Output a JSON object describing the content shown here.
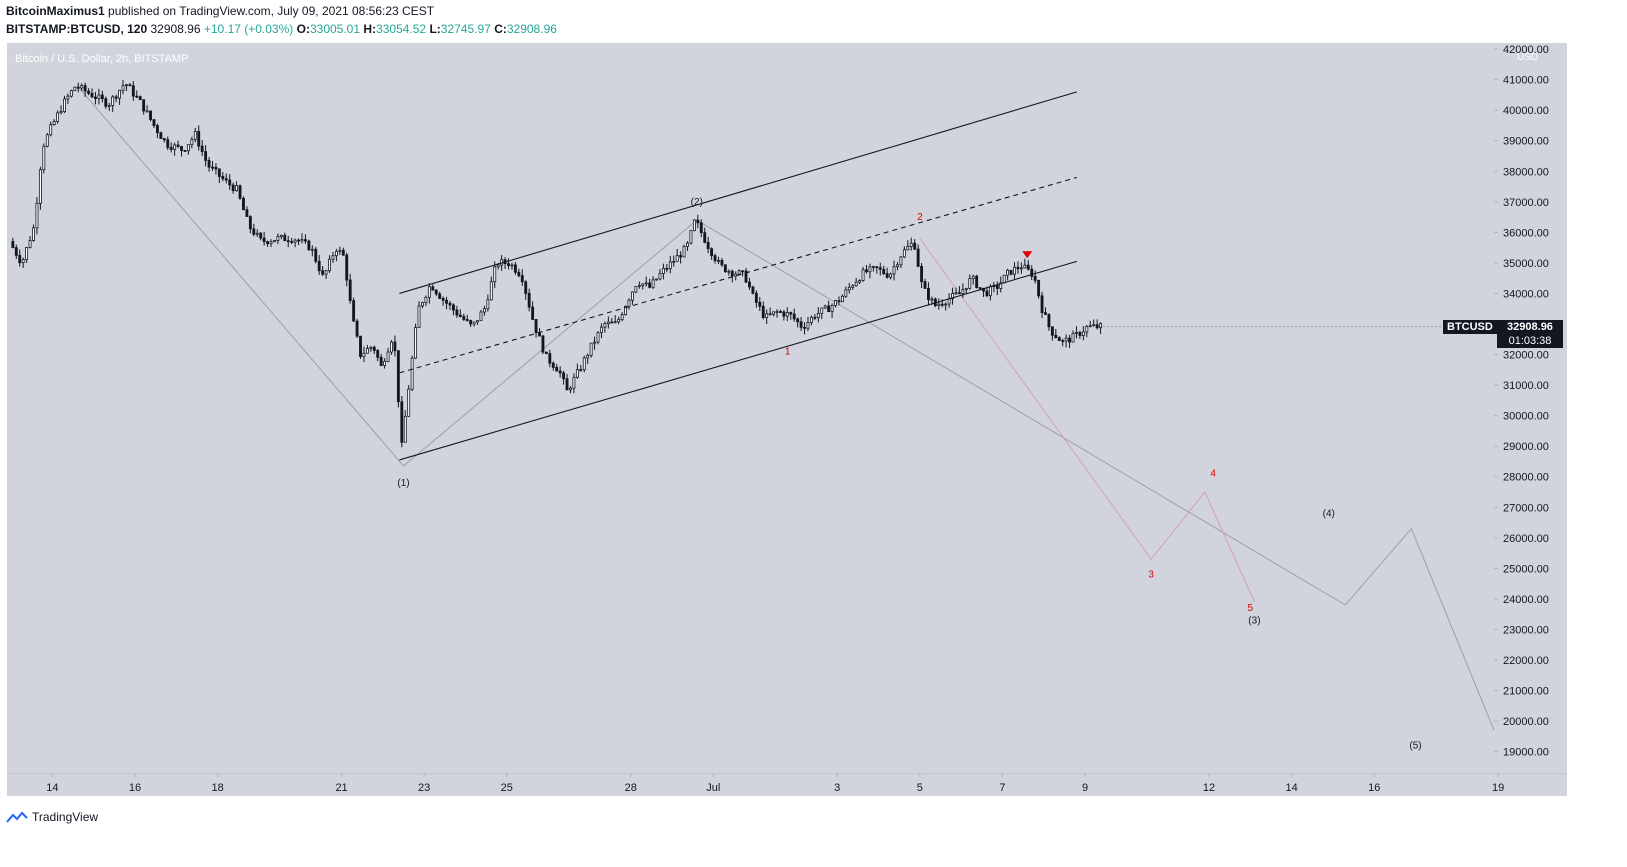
{
  "header": {
    "author": "BitcoinMaximus1",
    "published_text": " published on TradingView.com, July 09, 2021 08:56:23 CEST",
    "symbol": "BITSTAMP:BTCUSD, 120",
    "last": "32908.96",
    "change": "+10.17 (+0.03%)",
    "o_label": "O:",
    "o_value": "33005.01",
    "h_label": "H:",
    "h_value": "33054.52",
    "l_label": "L:",
    "l_value": "32745.97",
    "c_label": "C:",
    "c_value": "32908.96"
  },
  "chart_title": "Bitcoin / U.S. Dollar, 2h, BITSTAMP",
  "price_tag": {
    "symbol": "BTCUSD",
    "price": "32908.96",
    "countdown": "01:03:38"
  },
  "footer": {
    "brand": "TradingView"
  },
  "colors": {
    "bg": "#d1d4dc",
    "candle": "#131722",
    "red": "#e00000",
    "grey_line": "#9e9ea6",
    "pink_line": "#d8a0ac"
  },
  "chart_data": {
    "type": "candlestick",
    "title": "Bitcoin / U.S. Dollar, 2h, BITSTAMP",
    "currency": "USD",
    "y_ticks": [
      19000,
      20000,
      21000,
      22000,
      23000,
      24000,
      25000,
      26000,
      27000,
      28000,
      29000,
      30000,
      31000,
      32000,
      33000,
      34000,
      35000,
      36000,
      37000,
      38000,
      39000,
      40000,
      41000,
      42000
    ],
    "y_tick_labels": [
      "19000.00",
      "20000.00",
      "21000.00",
      "22000.00",
      "23000.00",
      "24000.00",
      "25000.00",
      "26000.00",
      "27000.00",
      "28000.00",
      "29000.00",
      "30000.00",
      "31000.00",
      "32000.00",
      "33000.00",
      "34000.00",
      "35000.00",
      "36000.00",
      "37000.00",
      "38000.00",
      "39000.00",
      "40000.00",
      "41000.00",
      "42000.00"
    ],
    "ylim": [
      18300,
      42200
    ],
    "x_ticks": [
      {
        "label": "14",
        "day": 14
      },
      {
        "label": "16",
        "day": 16
      },
      {
        "label": "18",
        "day": 18
      },
      {
        "label": "21",
        "day": 21
      },
      {
        "label": "23",
        "day": 23
      },
      {
        "label": "25",
        "day": 25
      },
      {
        "label": "28",
        "day": 28
      },
      {
        "label": "Jul",
        "day": 30
      },
      {
        "label": "3",
        "day": 33
      },
      {
        "label": "5",
        "day": 35
      },
      {
        "label": "7",
        "day": 37
      },
      {
        "label": "9",
        "day": 39
      },
      {
        "label": "12",
        "day": 42
      },
      {
        "label": "14",
        "day": 44
      },
      {
        "label": "16",
        "day": 46
      },
      {
        "label": "19",
        "day": 49
      }
    ],
    "xlim": [
      12.9,
      48.9
    ],
    "price_path": [
      [
        13.0,
        35700
      ],
      [
        13.3,
        35000
      ],
      [
        13.6,
        36200
      ],
      [
        13.8,
        38800
      ],
      [
        14.0,
        39400
      ],
      [
        14.3,
        40200
      ],
      [
        14.6,
        40800
      ],
      [
        15.0,
        40500
      ],
      [
        15.4,
        40200
      ],
      [
        15.8,
        40900
      ],
      [
        16.2,
        40200
      ],
      [
        16.5,
        39500
      ],
      [
        16.8,
        38900
      ],
      [
        17.2,
        38700
      ],
      [
        17.5,
        39200
      ],
      [
        17.8,
        38200
      ],
      [
        18.2,
        37700
      ],
      [
        18.5,
        37400
      ],
      [
        18.8,
        36200
      ],
      [
        19.1,
        35700
      ],
      [
        19.5,
        35800
      ],
      [
        19.9,
        35800
      ],
      [
        20.3,
        35500
      ],
      [
        20.6,
        34500
      ],
      [
        20.9,
        35500
      ],
      [
        21.1,
        35200
      ],
      [
        21.3,
        33200
      ],
      [
        21.5,
        32000
      ],
      [
        21.8,
        32300
      ],
      [
        22.0,
        31600
      ],
      [
        22.3,
        32700
      ],
      [
        22.5,
        29000
      ],
      [
        22.7,
        31300
      ],
      [
        22.9,
        33500
      ],
      [
        23.2,
        34300
      ],
      [
        23.5,
        33800
      ],
      [
        23.8,
        33400
      ],
      [
        24.2,
        32900
      ],
      [
        24.5,
        33500
      ],
      [
        24.8,
        35000
      ],
      [
        25.1,
        35000
      ],
      [
        25.4,
        34600
      ],
      [
        25.7,
        33000
      ],
      [
        26.0,
        31900
      ],
      [
        26.3,
        31500
      ],
      [
        26.5,
        30800
      ],
      [
        26.8,
        31500
      ],
      [
        27.1,
        32300
      ],
      [
        27.4,
        33000
      ],
      [
        27.7,
        33000
      ],
      [
        27.9,
        33600
      ],
      [
        28.2,
        34400
      ],
      [
        28.5,
        34200
      ],
      [
        28.8,
        34700
      ],
      [
        29.1,
        35100
      ],
      [
        29.4,
        35500
      ],
      [
        29.6,
        36400
      ],
      [
        29.9,
        35600
      ],
      [
        30.2,
        34900
      ],
      [
        30.5,
        34700
      ],
      [
        30.8,
        34600
      ],
      [
        31.0,
        33900
      ],
      [
        31.3,
        33200
      ],
      [
        31.6,
        33400
      ],
      [
        31.9,
        33300
      ],
      [
        32.2,
        32900
      ],
      [
        32.5,
        33300
      ],
      [
        32.8,
        33500
      ],
      [
        33.1,
        33800
      ],
      [
        33.4,
        34300
      ],
      [
        33.7,
        34700
      ],
      [
        34.0,
        34800
      ],
      [
        34.3,
        34600
      ],
      [
        34.6,
        35300
      ],
      [
        34.9,
        35700
      ],
      [
        35.1,
        34200
      ],
      [
        35.4,
        33600
      ],
      [
        35.7,
        33800
      ],
      [
        36.0,
        34000
      ],
      [
        36.3,
        34500
      ],
      [
        36.6,
        34000
      ],
      [
        36.9,
        34200
      ],
      [
        37.2,
        34700
      ],
      [
        37.5,
        34900
      ],
      [
        37.8,
        34600
      ],
      [
        38.0,
        33500
      ],
      [
        38.2,
        32800
      ],
      [
        38.5,
        32400
      ],
      [
        38.8,
        32600
      ],
      [
        39.1,
        32900
      ],
      [
        39.35,
        32909
      ]
    ],
    "channel_lines": [
      {
        "name": "upper",
        "style": "solid",
        "points": [
          [
            22.4,
            34000
          ],
          [
            38.8,
            40600
          ]
        ]
      },
      {
        "name": "middle",
        "style": "dashed",
        "points": [
          [
            22.4,
            31400
          ],
          [
            38.8,
            37800
          ]
        ]
      },
      {
        "name": "lower",
        "style": "solid",
        "points": [
          [
            22.4,
            28550
          ],
          [
            38.8,
            35050
          ]
        ]
      }
    ],
    "wave_lines": [
      {
        "name": "grey-primary",
        "color": "grey",
        "points": [
          [
            14.6,
            40800
          ],
          [
            22.5,
            28350
          ],
          [
            29.6,
            36400
          ],
          [
            45.3,
            23800
          ],
          [
            46.9,
            26300
          ],
          [
            48.9,
            19700
          ]
        ]
      },
      {
        "name": "red-sub",
        "color": "pink",
        "points": [
          [
            35.0,
            35800
          ],
          [
            40.6,
            25300
          ],
          [
            41.9,
            27500
          ],
          [
            43.1,
            23900
          ]
        ]
      }
    ],
    "wave_labels": [
      {
        "text": "(1)",
        "x": 22.5,
        "y": 27700,
        "color": "dark"
      },
      {
        "text": "(2)",
        "x": 29.6,
        "y": 36900,
        "color": "dark"
      },
      {
        "text": "(3)",
        "x": 43.1,
        "y": 23200,
        "color": "dark"
      },
      {
        "text": "(4)",
        "x": 44.9,
        "y": 26700,
        "color": "dark"
      },
      {
        "text": "(5)",
        "x": 47.0,
        "y": 19100,
        "color": "dark"
      },
      {
        "text": "1",
        "x": 31.8,
        "y": 32000,
        "color": "red"
      },
      {
        "text": "2",
        "x": 35.0,
        "y": 36400,
        "color": "red"
      },
      {
        "text": "3",
        "x": 40.6,
        "y": 24700,
        "color": "red"
      },
      {
        "text": "4",
        "x": 42.1,
        "y": 28000,
        "color": "red"
      },
      {
        "text": "5",
        "x": 43.0,
        "y": 23600,
        "color": "red"
      }
    ],
    "marker": {
      "type": "down-triangle",
      "x": 37.6,
      "y": 35250,
      "color": "red"
    },
    "last_price": 32908.96
  }
}
